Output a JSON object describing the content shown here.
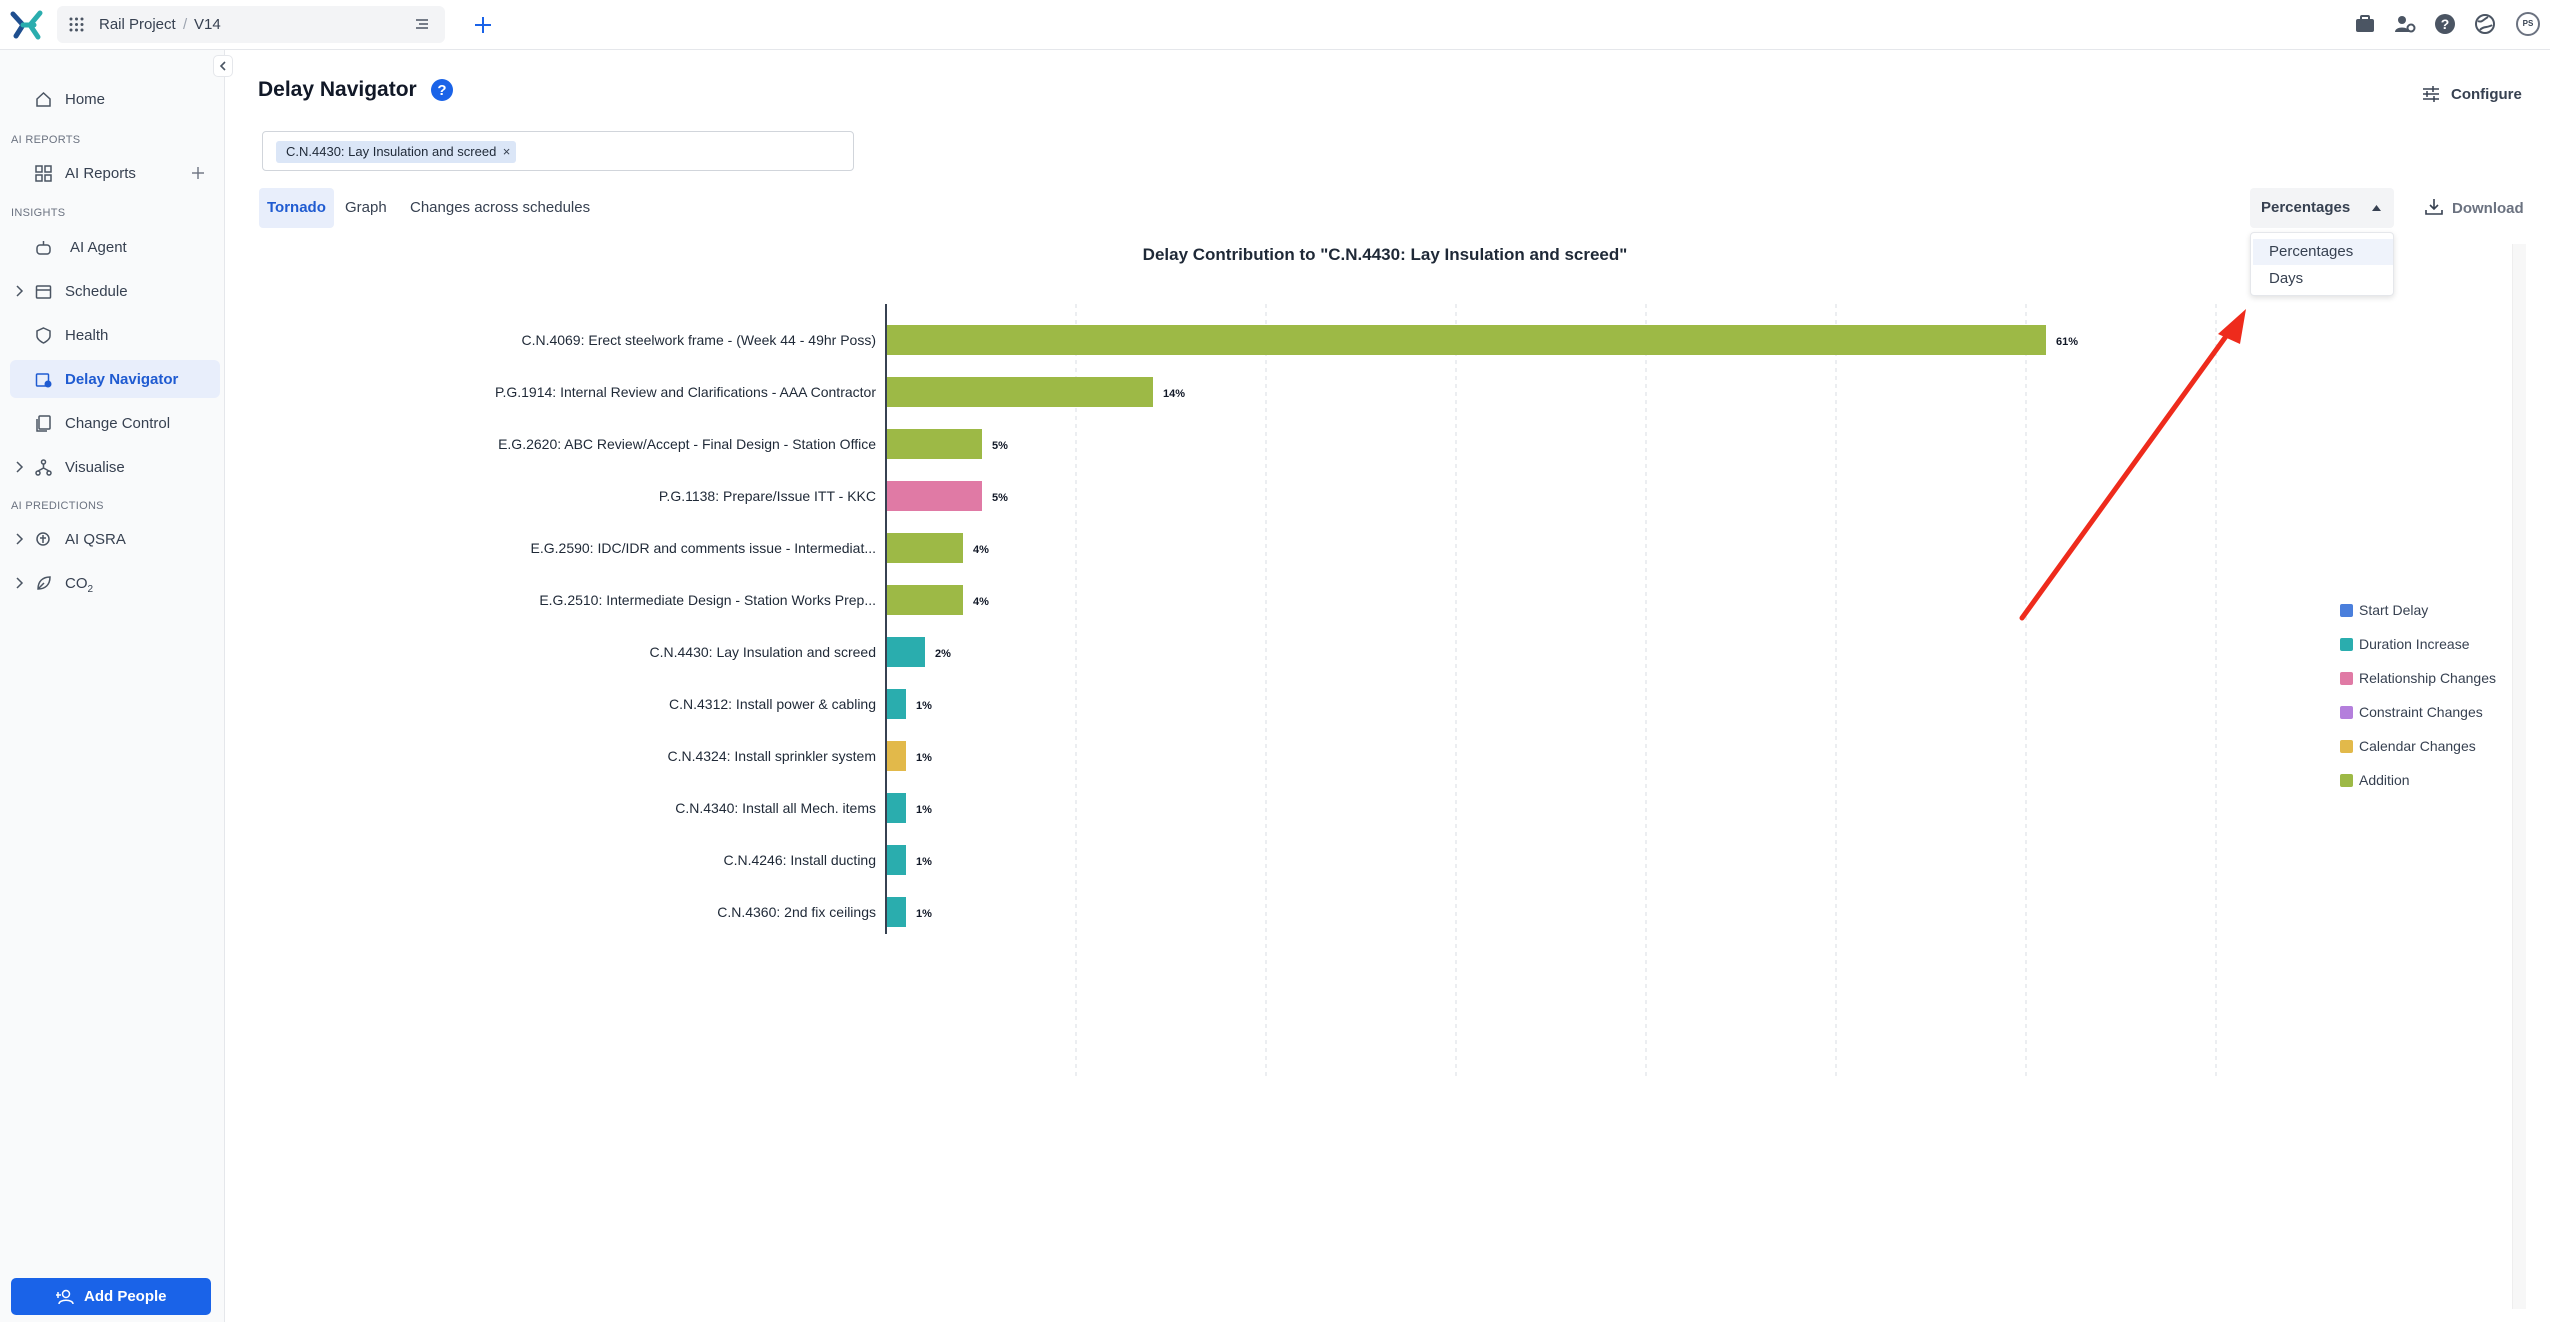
{
  "topbar": {
    "project_name": "Rail Project",
    "separator": "/",
    "version": "V14",
    "avatar_initials": "PS"
  },
  "sidebar": {
    "sections": [
      "AI REPORTS",
      "INSIGHTS",
      "AI PREDICTIONS"
    ],
    "items": [
      {
        "label": "Home"
      },
      {
        "label": "AI Reports"
      },
      {
        "label": "AI Agent"
      },
      {
        "label": "Schedule"
      },
      {
        "label": "Health"
      },
      {
        "label": "Delay Navigator"
      },
      {
        "label": "Change Control"
      },
      {
        "label": "Visualise"
      },
      {
        "label": "AI QSRA"
      },
      {
        "label": "CO",
        "subscript": "2"
      }
    ],
    "add_people_label": "Add People"
  },
  "main": {
    "title": "Delay Navigator",
    "configure_label": "Configure",
    "selected_activity": "C.N.4430: Lay Insulation and screed",
    "tabs": [
      "Tornado",
      "Graph",
      "Changes across schedules"
    ],
    "active_tab": "Tornado",
    "units_select": {
      "selected": "Percentages",
      "options": [
        "Percentages",
        "Days"
      ]
    },
    "download_label": "Download"
  },
  "colors": {
    "Start Delay": "#4a7fdc",
    "Duration Increase": "#2aadae",
    "Relationship Changes": "#e07aa5",
    "Constraint Changes": "#b47fdc",
    "Calendar Changes": "#e2b94a",
    "Addition": "#9db946"
  },
  "chart_data": {
    "type": "bar",
    "orientation": "horizontal",
    "title": "Delay Contribution to \"C.N.4430: Lay Insulation and screed\"",
    "xlim": [
      0,
      100
    ],
    "grid": true,
    "legend_position": "right",
    "legend": [
      "Start Delay",
      "Duration Increase",
      "Relationship Changes",
      "Constraint Changes",
      "Calendar Changes",
      "Addition"
    ],
    "categories": [
      "C.N.4069: Erect steelwork frame - (Week 44 - 49hr Poss)",
      "P.G.1914: Internal Review and Clarifications - AAA Contractor",
      "E.G.2620: ABC Review/Accept -  Final Design  -  Station Office",
      "P.G.1138: Prepare/Issue ITT -  KKC",
      "E.G.2590: IDC/IDR and comments issue - Intermediat...",
      "E.G.2510: Intermediate Design - Station Works Prep...",
      "C.N.4430: Lay Insulation and screed",
      "C.N.4312: Install power & cabling",
      "C.N.4324: Install sprinkler system",
      "C.N.4340: Install all Mech. items",
      "C.N.4246: Install ducting",
      "C.N.4360: 2nd fix ceilings"
    ],
    "values": [
      61,
      14,
      5,
      5,
      4,
      4,
      2,
      1,
      1,
      1,
      1,
      1
    ],
    "value_labels": [
      "61%",
      "14%",
      "5%",
      "5%",
      "4%",
      "4%",
      "2%",
      "1%",
      "1%",
      "1%",
      "1%",
      "1%"
    ],
    "change_types": [
      "Addition",
      "Addition",
      "Addition",
      "Relationship Changes",
      "Addition",
      "Addition",
      "Duration Increase",
      "Duration Increase",
      "Calendar Changes",
      "Duration Increase",
      "Duration Increase",
      "Duration Increase"
    ]
  }
}
